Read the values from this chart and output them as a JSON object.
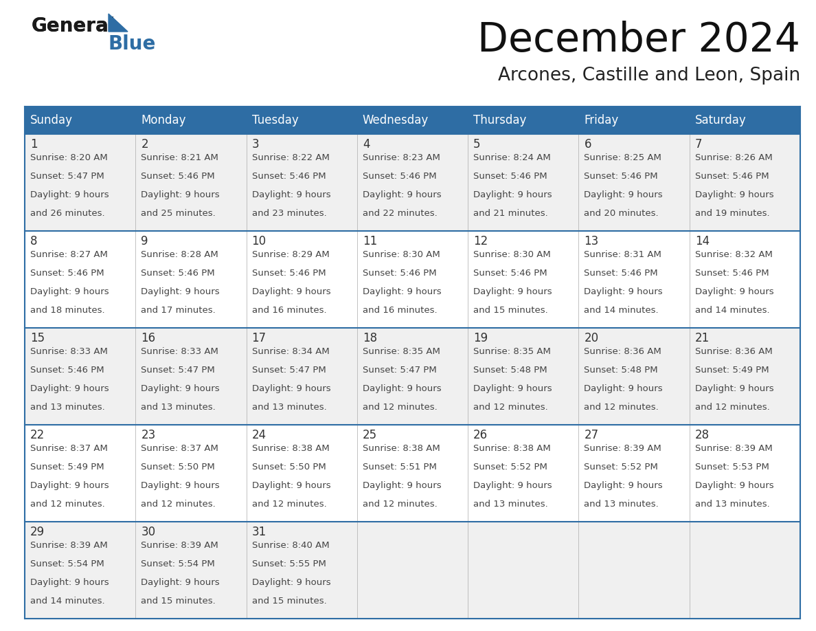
{
  "title": "December 2024",
  "subtitle": "Arcones, Castille and Leon, Spain",
  "header_color": "#2E6DA4",
  "header_text_color": "#FFFFFF",
  "day_names": [
    "Sunday",
    "Monday",
    "Tuesday",
    "Wednesday",
    "Thursday",
    "Friday",
    "Saturday"
  ],
  "background_color": "#FFFFFF",
  "cell_bg_light": "#F0F0F0",
  "cell_bg_white": "#FFFFFF",
  "border_color": "#2E6DA4",
  "divider_color": "#AAAAAA",
  "day_num_color": "#333333",
  "text_color": "#444444",
  "logo_color1": "#1a1a1a",
  "logo_color2": "#2E6DA4",
  "weeks": [
    [
      {
        "day": 1,
        "sunrise": "8:20 AM",
        "sunset": "5:47 PM",
        "daylight": "9 hours",
        "daylight2": "and 26 minutes."
      },
      {
        "day": 2,
        "sunrise": "8:21 AM",
        "sunset": "5:46 PM",
        "daylight": "9 hours",
        "daylight2": "and 25 minutes."
      },
      {
        "day": 3,
        "sunrise": "8:22 AM",
        "sunset": "5:46 PM",
        "daylight": "9 hours",
        "daylight2": "and 23 minutes."
      },
      {
        "day": 4,
        "sunrise": "8:23 AM",
        "sunset": "5:46 PM",
        "daylight": "9 hours",
        "daylight2": "and 22 minutes."
      },
      {
        "day": 5,
        "sunrise": "8:24 AM",
        "sunset": "5:46 PM",
        "daylight": "9 hours",
        "daylight2": "and 21 minutes."
      },
      {
        "day": 6,
        "sunrise": "8:25 AM",
        "sunset": "5:46 PM",
        "daylight": "9 hours",
        "daylight2": "and 20 minutes."
      },
      {
        "day": 7,
        "sunrise": "8:26 AM",
        "sunset": "5:46 PM",
        "daylight": "9 hours",
        "daylight2": "and 19 minutes."
      }
    ],
    [
      {
        "day": 8,
        "sunrise": "8:27 AM",
        "sunset": "5:46 PM",
        "daylight": "9 hours",
        "daylight2": "and 18 minutes."
      },
      {
        "day": 9,
        "sunrise": "8:28 AM",
        "sunset": "5:46 PM",
        "daylight": "9 hours",
        "daylight2": "and 17 minutes."
      },
      {
        "day": 10,
        "sunrise": "8:29 AM",
        "sunset": "5:46 PM",
        "daylight": "9 hours",
        "daylight2": "and 16 minutes."
      },
      {
        "day": 11,
        "sunrise": "8:30 AM",
        "sunset": "5:46 PM",
        "daylight": "9 hours",
        "daylight2": "and 16 minutes."
      },
      {
        "day": 12,
        "sunrise": "8:30 AM",
        "sunset": "5:46 PM",
        "daylight": "9 hours",
        "daylight2": "and 15 minutes."
      },
      {
        "day": 13,
        "sunrise": "8:31 AM",
        "sunset": "5:46 PM",
        "daylight": "9 hours",
        "daylight2": "and 14 minutes."
      },
      {
        "day": 14,
        "sunrise": "8:32 AM",
        "sunset": "5:46 PM",
        "daylight": "9 hours",
        "daylight2": "and 14 minutes."
      }
    ],
    [
      {
        "day": 15,
        "sunrise": "8:33 AM",
        "sunset": "5:46 PM",
        "daylight": "9 hours",
        "daylight2": "and 13 minutes."
      },
      {
        "day": 16,
        "sunrise": "8:33 AM",
        "sunset": "5:47 PM",
        "daylight": "9 hours",
        "daylight2": "and 13 minutes."
      },
      {
        "day": 17,
        "sunrise": "8:34 AM",
        "sunset": "5:47 PM",
        "daylight": "9 hours",
        "daylight2": "and 13 minutes."
      },
      {
        "day": 18,
        "sunrise": "8:35 AM",
        "sunset": "5:47 PM",
        "daylight": "9 hours",
        "daylight2": "and 12 minutes."
      },
      {
        "day": 19,
        "sunrise": "8:35 AM",
        "sunset": "5:48 PM",
        "daylight": "9 hours",
        "daylight2": "and 12 minutes."
      },
      {
        "day": 20,
        "sunrise": "8:36 AM",
        "sunset": "5:48 PM",
        "daylight": "9 hours",
        "daylight2": "and 12 minutes."
      },
      {
        "day": 21,
        "sunrise": "8:36 AM",
        "sunset": "5:49 PM",
        "daylight": "9 hours",
        "daylight2": "and 12 minutes."
      }
    ],
    [
      {
        "day": 22,
        "sunrise": "8:37 AM",
        "sunset": "5:49 PM",
        "daylight": "9 hours",
        "daylight2": "and 12 minutes."
      },
      {
        "day": 23,
        "sunrise": "8:37 AM",
        "sunset": "5:50 PM",
        "daylight": "9 hours",
        "daylight2": "and 12 minutes."
      },
      {
        "day": 24,
        "sunrise": "8:38 AM",
        "sunset": "5:50 PM",
        "daylight": "9 hours",
        "daylight2": "and 12 minutes."
      },
      {
        "day": 25,
        "sunrise": "8:38 AM",
        "sunset": "5:51 PM",
        "daylight": "9 hours",
        "daylight2": "and 12 minutes."
      },
      {
        "day": 26,
        "sunrise": "8:38 AM",
        "sunset": "5:52 PM",
        "daylight": "9 hours",
        "daylight2": "and 13 minutes."
      },
      {
        "day": 27,
        "sunrise": "8:39 AM",
        "sunset": "5:52 PM",
        "daylight": "9 hours",
        "daylight2": "and 13 minutes."
      },
      {
        "day": 28,
        "sunrise": "8:39 AM",
        "sunset": "5:53 PM",
        "daylight": "9 hours",
        "daylight2": "and 13 minutes."
      }
    ],
    [
      {
        "day": 29,
        "sunrise": "8:39 AM",
        "sunset": "5:54 PM",
        "daylight": "9 hours",
        "daylight2": "and 14 minutes."
      },
      {
        "day": 30,
        "sunrise": "8:39 AM",
        "sunset": "5:54 PM",
        "daylight": "9 hours",
        "daylight2": "and 15 minutes."
      },
      {
        "day": 31,
        "sunrise": "8:40 AM",
        "sunset": "5:55 PM",
        "daylight": "9 hours",
        "daylight2": "and 15 minutes."
      },
      null,
      null,
      null,
      null
    ]
  ]
}
